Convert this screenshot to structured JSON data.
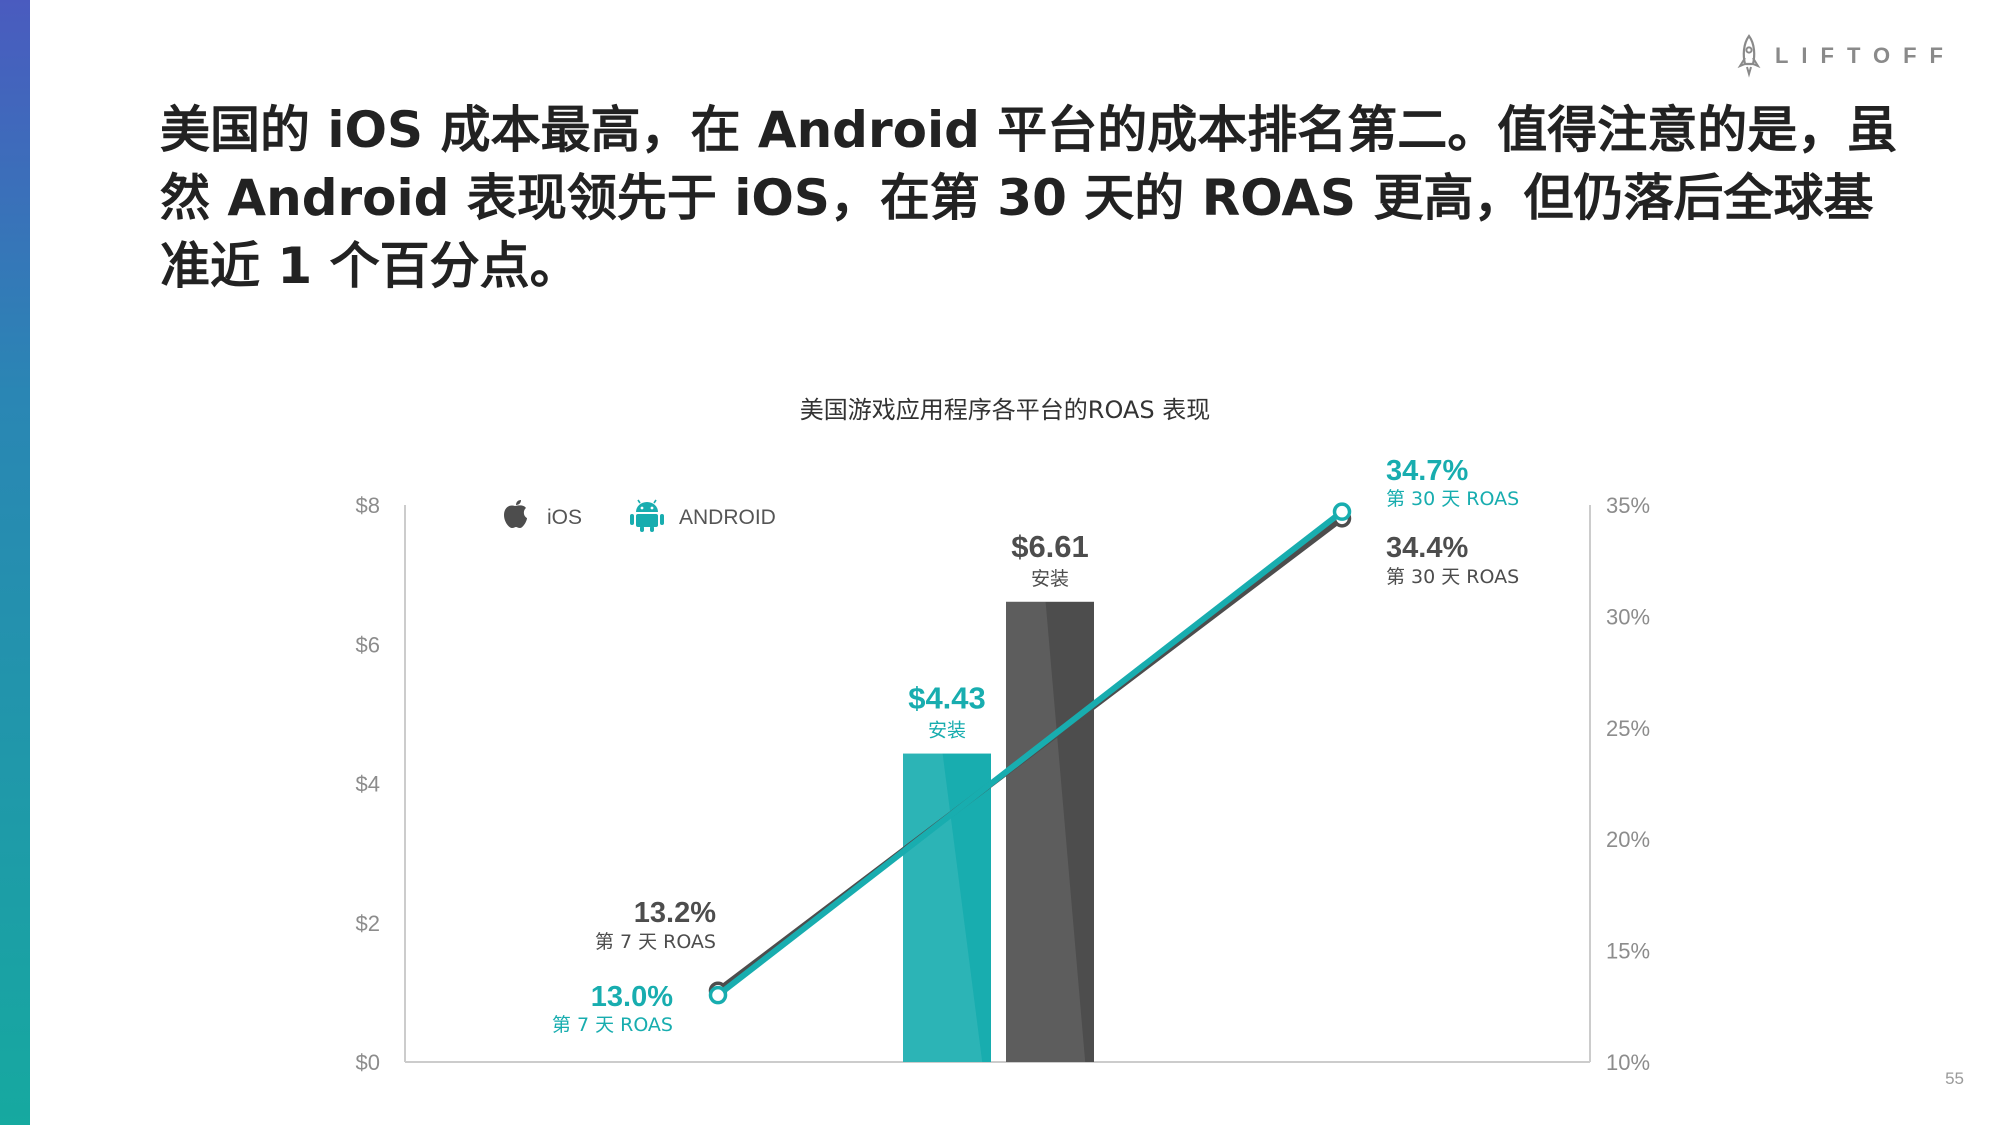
{
  "logo": {
    "text": "LIFTOFF",
    "icon": "rocket-icon"
  },
  "headline": "美国的 iOS 成本最高，在 Android 平台的成本排名第二。值得注意的是，虽然 Android 表现领先于 iOS，在第 30 天的 ROAS 更高，但仍落后全球基准近 1 个百分点。",
  "page_number": "55",
  "colors": {
    "ios": "#4d4d4d",
    "android": "#18adaf",
    "axis_text": "#8c8c8c",
    "axis_line": "#cccccc"
  },
  "chart_data": {
    "type": "bar+line",
    "title": "美国游戏应用程序各平台的ROAS 表现",
    "legend": [
      {
        "name": "iOS",
        "icon": "apple-icon",
        "color": "#4d4d4d"
      },
      {
        "name": "ANDROID",
        "icon": "android-icon",
        "color": "#18adaf"
      }
    ],
    "left_axis": {
      "ticks": [
        "$0",
        "$2",
        "$4",
        "$6",
        "$8"
      ],
      "range": [
        0,
        8
      ]
    },
    "right_axis": {
      "ticks": [
        "10%",
        "15%",
        "20%",
        "25%",
        "30%",
        "35%"
      ],
      "range": [
        10,
        35
      ]
    },
    "bars": [
      {
        "series": "ANDROID",
        "value": 4.43,
        "value_label": "$4.43",
        "sub_label": "安装"
      },
      {
        "series": "iOS",
        "value": 6.61,
        "value_label": "$6.61",
        "sub_label": "安装"
      }
    ],
    "lines": [
      {
        "series": "iOS",
        "start": {
          "value": 13.2,
          "value_label": "13.2%",
          "sub_label": "第 7 天 ROAS"
        },
        "end": {
          "value": 34.4,
          "value_label": "34.4%",
          "sub_label": "第 30 天 ROAS"
        }
      },
      {
        "series": "ANDROID",
        "start": {
          "value": 13.0,
          "value_label": "13.0%",
          "sub_label": "第 7 天 ROAS"
        },
        "end": {
          "value": 34.7,
          "value_label": "34.7%",
          "sub_label": "第 30 天 ROAS"
        }
      }
    ]
  }
}
